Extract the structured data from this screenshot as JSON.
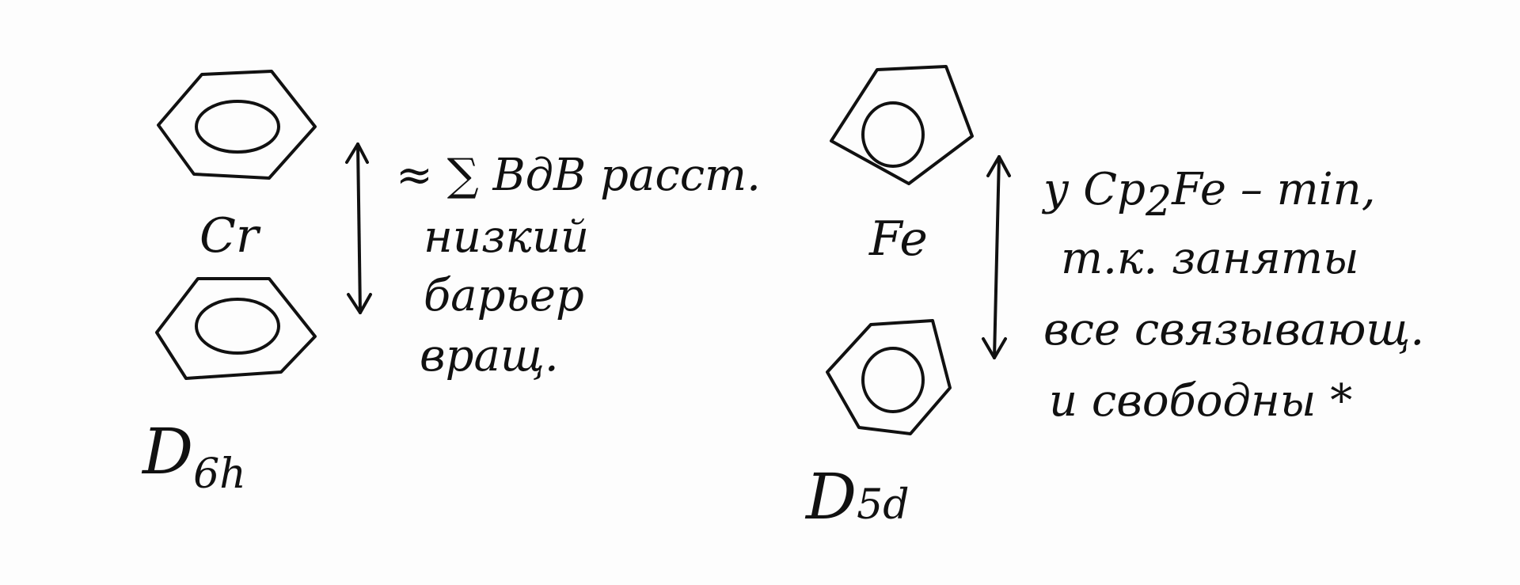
{
  "left": {
    "metal": "Cr",
    "note_line1": "≈ ∑ BдB расст.",
    "note_line2": "низкий",
    "note_line3": "барьер",
    "note_line4": "вращ.",
    "symmetry_main": "D",
    "symmetry_sub": "6h"
  },
  "right": {
    "metal": "Fe",
    "note_line1_pre": "у Cp",
    "note_line1_sub": "2",
    "note_line1_post": "Fe – min,",
    "note_line2": "т.к. заняты",
    "note_line3": "все связывающ.",
    "note_line4": "и свободны *",
    "symmetry_main": "D",
    "symmetry_sub": "5d"
  }
}
